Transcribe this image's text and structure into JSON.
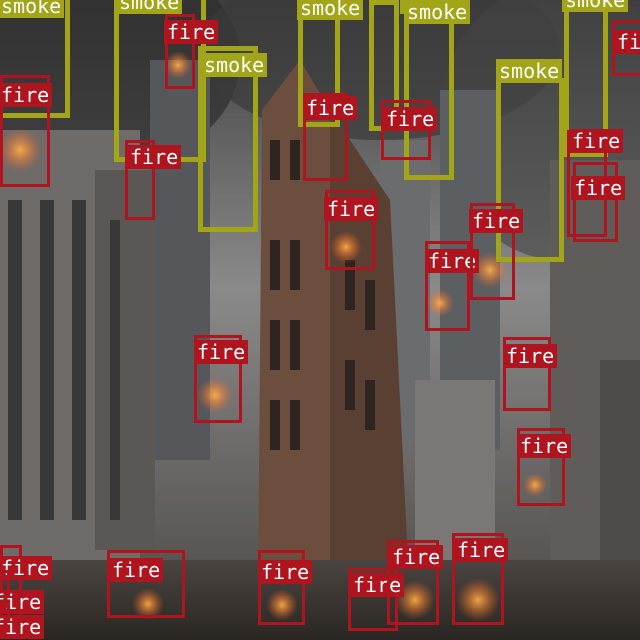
{
  "image": {
    "description_name": "city-street-fire-smoke-detection",
    "colors": {
      "fire": "#b0141e",
      "smoke": "#a3a518",
      "label_text": "#ffffff"
    }
  },
  "detections": [
    {
      "class": "smoke",
      "label": "smoke"
    },
    {
      "class": "smoke",
      "label": "smoke"
    },
    {
      "class": "smoke",
      "label": "smoke"
    },
    {
      "class": "smoke",
      "label": "smoke"
    },
    {
      "class": "smoke",
      "label": "smoke"
    },
    {
      "class": "smoke",
      "label": "smoke"
    },
    {
      "class": "smoke",
      "label": "smoke"
    },
    {
      "class": "smoke",
      "label": "smoke"
    },
    {
      "class": "fire",
      "label": "fire"
    },
    {
      "class": "fire",
      "label": "fire"
    },
    {
      "class": "fire",
      "label": "fire"
    },
    {
      "class": "fire",
      "label": "fire"
    },
    {
      "class": "fire",
      "label": "fire"
    },
    {
      "class": "fire",
      "label": "fire"
    },
    {
      "class": "fire",
      "label": "fire"
    },
    {
      "class": "fire",
      "label": "fire"
    },
    {
      "class": "fire",
      "label": "fire"
    },
    {
      "class": "fire",
      "label": "fire"
    },
    {
      "class": "fire",
      "label": "fire"
    },
    {
      "class": "fire",
      "label": "fire"
    },
    {
      "class": "fire",
      "label": "fire"
    },
    {
      "class": "fire",
      "label": "fire"
    },
    {
      "class": "fire",
      "label": "fire"
    },
    {
      "class": "fire",
      "label": "fire"
    },
    {
      "class": "fire",
      "label": "fire"
    },
    {
      "class": "fire",
      "label": "fire"
    },
    {
      "class": "fire",
      "label": "fire"
    },
    {
      "class": "fire",
      "label": "fire"
    },
    {
      "class": "fire",
      "label": "fire"
    },
    {
      "class": "fire",
      "label": "fire"
    }
  ]
}
